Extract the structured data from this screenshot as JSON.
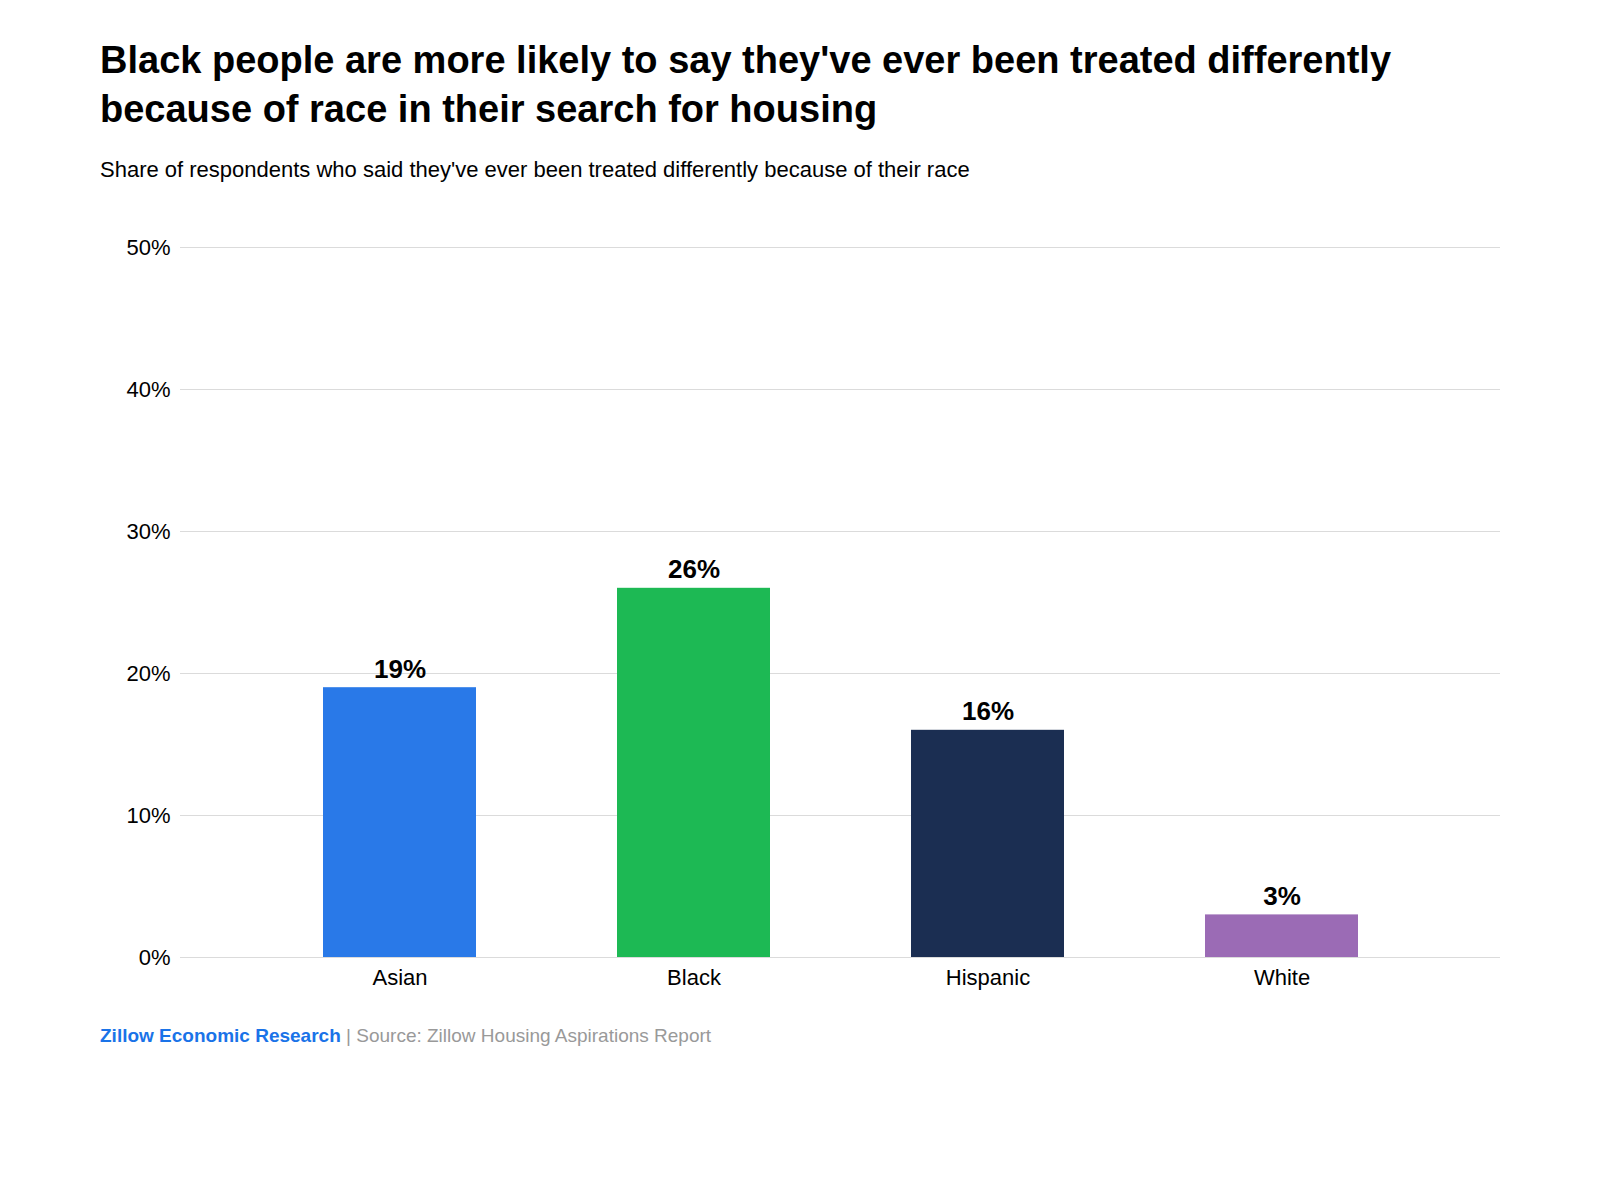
{
  "chart_data": {
    "type": "bar",
    "title": "Black people are more likely to say they've ever been treated differently\nbecause of race in their search for housing",
    "subtitle": "Share of respondents who said they've ever been treated differently because of their race",
    "categories": [
      "Asian",
      "Black",
      "Hispanic",
      "White"
    ],
    "values": [
      19,
      26,
      16,
      3
    ],
    "value_labels": [
      "19%",
      "26%",
      "16%",
      "3%"
    ],
    "data_labels": true,
    "colors": [
      "#2979E8",
      "#1DB954",
      "#1B2E52",
      "#9B6BB5"
    ],
    "ylim": [
      0,
      50
    ],
    "yticks": [
      {
        "value": 0,
        "label": "0%"
      },
      {
        "value": 10,
        "label": "10%"
      },
      {
        "value": 20,
        "label": "20%"
      },
      {
        "value": 30,
        "label": "30%"
      },
      {
        "value": 40,
        "label": "40%"
      },
      {
        "value": 50,
        "label": "50%"
      }
    ],
    "grid": true,
    "annotations": [
      {
        "text": "Zillow Economic Research",
        "color": "#1A73E8"
      },
      {
        "text": "| Source: Zillow Housing Aspirations Report",
        "color": "#999999"
      }
    ]
  }
}
